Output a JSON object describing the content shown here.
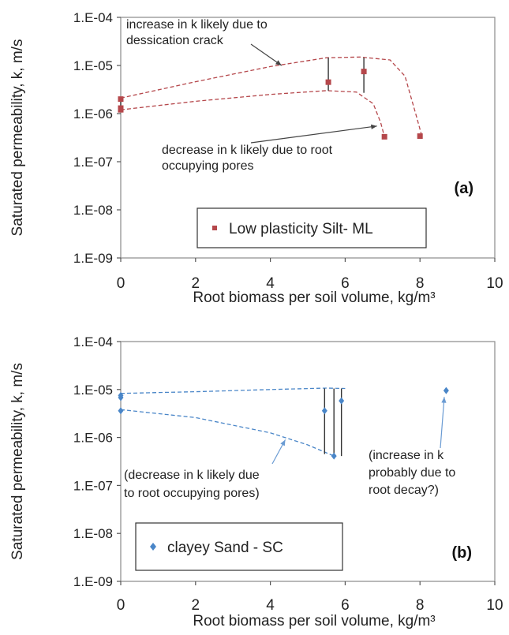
{
  "chart_data": [
    {
      "type": "scatter",
      "panel_label": "(a)",
      "xlabel": "Root biomass per soil volume, kg/m³",
      "ylabel": "Saturated permeability, k, m/s",
      "xlim": [
        0,
        10
      ],
      "ylim": [
        1e-09,
        0.0001
      ],
      "yscale": "log",
      "x_ticks": [
        "0",
        "2",
        "4",
        "6",
        "8",
        "10"
      ],
      "y_ticks": [
        "1.E-09",
        "1.E-08",
        "1.E-07",
        "1.E-06",
        "1.E-05",
        "1.E-04"
      ],
      "grid": false,
      "legend_position": "lower-center",
      "series": [
        {
          "name": "Low plasticity Silt- ML",
          "color": "#b5474b",
          "marker": "square",
          "points": [
            {
              "x": 0.0,
              "y": 2e-06
            },
            {
              "x": 0.0,
              "y": 1.3e-06
            },
            {
              "x": 0.0,
              "y": 1.2e-06
            },
            {
              "x": 5.55,
              "y": 4.5e-06
            },
            {
              "x": 6.5,
              "y": 7.5e-06
            },
            {
              "x": 7.05,
              "y": 3.3e-07
            },
            {
              "x": 8.0,
              "y": 3.4e-07
            }
          ]
        }
      ],
      "trend_lines": [
        {
          "points": [
            [
              0,
              2.1e-06
            ],
            [
              2,
              4.6e-06
            ],
            [
              4,
              9.5e-06
            ],
            [
              5.5,
              1.45e-05
            ],
            [
              6.4,
              1.5e-05
            ],
            [
              7.2,
              1.3e-05
            ],
            [
              7.6,
              6e-06
            ],
            [
              7.9,
              9e-07
            ],
            [
              8.05,
              3.4e-07
            ]
          ]
        },
        {
          "points": [
            [
              0,
              1.2e-06
            ],
            [
              2,
              1.8e-06
            ],
            [
              4,
              2.5e-06
            ],
            [
              5.5,
              3e-06
            ],
            [
              6.3,
              2.8e-06
            ],
            [
              6.75,
              1.6e-06
            ],
            [
              6.95,
              6.5e-07
            ],
            [
              7.05,
              3.3e-07
            ]
          ]
        }
      ],
      "range_bars": [
        {
          "x": 0.0,
          "low": 1.2e-06,
          "high": 2.1e-06
        },
        {
          "x": 5.55,
          "low": 3e-06,
          "high": 1.45e-05
        },
        {
          "x": 6.5,
          "low": 2.7e-06,
          "high": 1.45e-05
        }
      ],
      "annotations": [
        {
          "text_lines": [
            "increase in k likely due to",
            "dessication crack"
          ],
          "arrow_to": [
            4.3,
            1e-05
          ]
        },
        {
          "text_lines": [
            "decrease in k likely due to root",
            "occupying pores"
          ],
          "arrow_to": [
            6.85,
            5.5e-07
          ]
        }
      ]
    },
    {
      "type": "scatter",
      "panel_label": "(b)",
      "xlabel": "Root biomass per soil volume, kg/m³",
      "ylabel": "Saturated permeability, k, m/s",
      "xlim": [
        0,
        10
      ],
      "ylim": [
        1e-09,
        0.0001
      ],
      "yscale": "log",
      "x_ticks": [
        "0",
        "2",
        "4",
        "6",
        "8",
        "10"
      ],
      "y_ticks": [
        "1.E-09",
        "1.E-08",
        "1.E-07",
        "1.E-06",
        "1.E-05",
        "1.E-04"
      ],
      "grid": false,
      "legend_position": "lower-left",
      "series": [
        {
          "name": "clayey Sand - SC",
          "color": "#4a86c8",
          "marker": "diamond",
          "points": [
            {
              "x": 0.0,
              "y": 7.5e-06
            },
            {
              "x": 0.0,
              "y": 6.8e-06
            },
            {
              "x": 0.0,
              "y": 3.6e-06
            },
            {
              "x": 5.45,
              "y": 3.6e-06
            },
            {
              "x": 5.7,
              "y": 4.1e-07
            },
            {
              "x": 5.9,
              "y": 5.8e-06
            },
            {
              "x": 8.7,
              "y": 9.5e-06
            }
          ]
        }
      ],
      "trend_lines": [
        {
          "points": [
            [
              0,
              8.3e-06
            ],
            [
              2,
              9e-06
            ],
            [
              4,
              1e-05
            ],
            [
              5.5,
              1.07e-05
            ],
            [
              6.0,
              1.05e-05
            ]
          ]
        },
        {
          "points": [
            [
              0,
              3.8e-06
            ],
            [
              2,
              2.6e-06
            ],
            [
              4,
              1.25e-06
            ],
            [
              5.0,
              7e-07
            ],
            [
              5.7,
              4.1e-07
            ]
          ]
        }
      ],
      "range_bars": [
        {
          "x": 5.45,
          "low": 4.5e-07,
          "high": 1.05e-05
        },
        {
          "x": 5.7,
          "low": 4.1e-07,
          "high": 1.05e-05
        },
        {
          "x": 5.9,
          "low": 4.1e-07,
          "high": 1.05e-05
        }
      ],
      "annotations": [
        {
          "text_lines": [
            "(decrease in k likely due",
            "to root occupying pores)"
          ],
          "arrow_to": [
            4.4,
            9e-07
          ]
        },
        {
          "text_lines": [
            "(increase in k",
            "probably due to",
            "root decay?)"
          ],
          "arrow_to": [
            8.65,
            7e-06
          ]
        }
      ]
    }
  ]
}
